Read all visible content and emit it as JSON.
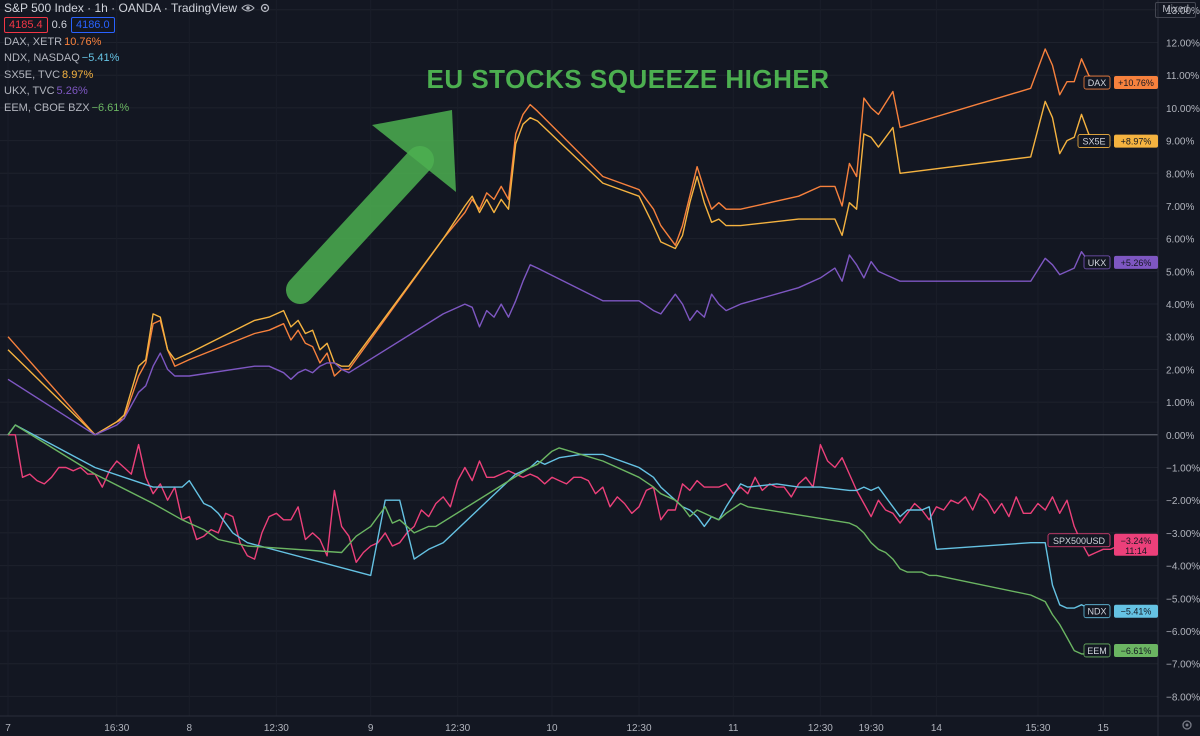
{
  "header": {
    "title": "S&P 500 Index · 1h · OANDA · TradingView",
    "bid": "4185.4",
    "spread": "0.6",
    "ask": "4186.0",
    "scale_mode": "Mixed"
  },
  "annotation": {
    "text": "EU STOCKS SQUEEZE HIGHER",
    "color": "#4caf50",
    "arrow_color": "#4caf50"
  },
  "legend": [
    {
      "name": "DAX, XETR",
      "value": "10.76%",
      "color": "#f7813d"
    },
    {
      "name": "NDX, NASDAQ",
      "value": "−5.41%",
      "color": "#65c2e3"
    },
    {
      "name": "SX5E, TVC",
      "value": "8.97%",
      "color": "#f5b340"
    },
    {
      "name": "UKX, TVC",
      "value": "5.26%",
      "color": "#7e57c2"
    },
    {
      "name": "EEM, CBOE BZX",
      "value": "−6.61%",
      "color": "#6bb562"
    }
  ],
  "chart_data": {
    "type": "line",
    "y_unit": "%",
    "ylim": [
      -8.6,
      13.3
    ],
    "y_ticks": [
      "13.00%",
      "12.00%",
      "11.00%",
      "10.00%",
      "9.00%",
      "8.00%",
      "7.00%",
      "6.00%",
      "5.00%",
      "4.00%",
      "3.00%",
      "2.00%",
      "1.00%",
      "0.00%",
      "−1.00%",
      "−2.00%",
      "−3.00%",
      "−4.00%",
      "−5.00%",
      "−6.00%",
      "−7.00%",
      "−8.00%"
    ],
    "y_tick_values": [
      13,
      12,
      11,
      10,
      9,
      8,
      7,
      6,
      5,
      4,
      3,
      2,
      1,
      0,
      -1,
      -2,
      -3,
      -4,
      -5,
      -6,
      -7,
      -8
    ],
    "x_ticks": [
      {
        "label": "7",
        "x": 0
      },
      {
        "label": "16:30",
        "x": 15
      },
      {
        "label": "8",
        "x": 25
      },
      {
        "label": "12:30",
        "x": 37
      },
      {
        "label": "9",
        "x": 50
      },
      {
        "label": "12:30",
        "x": 62
      },
      {
        "label": "10",
        "x": 75
      },
      {
        "label": "12:30",
        "x": 87
      },
      {
        "label": "11",
        "x": 100
      },
      {
        "label": "12:30",
        "x": 112
      },
      {
        "label": "19:30",
        "x": 119
      },
      {
        "label": "14",
        "x": 128
      },
      {
        "label": "15:30",
        "x": 142
      },
      {
        "label": "15",
        "x": 151
      }
    ],
    "x_range": [
      0,
      158
    ],
    "zero_line": true,
    "series": [
      {
        "name": "DAX",
        "label": "+10.76%",
        "color": "#f7813d",
        "last": 10.76,
        "x": [
          0,
          12,
          15,
          16,
          18,
          19,
          20,
          21,
          22,
          23,
          25,
          34,
          36,
          38,
          39,
          40,
          41,
          42,
          43,
          44,
          45,
          46,
          47,
          60,
          63,
          64,
          65,
          66,
          67,
          68,
          69,
          70,
          71,
          72,
          73,
          82,
          87,
          89,
          90,
          92,
          93,
          94,
          95,
          96,
          97,
          98,
          99,
          101,
          109,
          112,
          114,
          115,
          116,
          117,
          118,
          119,
          120,
          122,
          123,
          141,
          143,
          144,
          145,
          146,
          147,
          148,
          149,
          150
        ],
        "y": [
          3.0,
          0.0,
          0.4,
          0.5,
          1.8,
          2.2,
          3.4,
          3.5,
          2.6,
          2.1,
          2.3,
          3.1,
          3.2,
          3.4,
          2.9,
          3.2,
          2.8,
          2.7,
          2.2,
          2.5,
          1.8,
          2.0,
          2.0,
          6.0,
          6.8,
          7.2,
          6.9,
          7.4,
          7.2,
          7.6,
          7.2,
          9.2,
          9.8,
          10.1,
          9.9,
          7.9,
          7.5,
          6.9,
          6.4,
          5.8,
          6.4,
          7.3,
          8.2,
          7.5,
          6.9,
          7.1,
          6.9,
          6.9,
          7.3,
          7.6,
          7.6,
          7.0,
          8.3,
          7.9,
          10.3,
          10.0,
          9.8,
          10.5,
          9.4,
          10.6,
          11.8,
          11.3,
          10.4,
          10.8,
          10.8,
          11.5,
          11.0,
          10.8
        ]
      },
      {
        "name": "SX5E",
        "label": "+8.97%",
        "color": "#f5b340",
        "last": 8.97,
        "x": [
          0,
          12,
          15,
          16,
          18,
          19,
          20,
          21,
          22,
          23,
          25,
          34,
          36,
          38,
          39,
          40,
          41,
          42,
          43,
          44,
          45,
          46,
          47,
          60,
          63,
          64,
          65,
          66,
          67,
          68,
          69,
          70,
          71,
          72,
          73,
          82,
          87,
          89,
          90,
          92,
          93,
          94,
          95,
          96,
          97,
          98,
          99,
          101,
          109,
          112,
          114,
          115,
          116,
          117,
          118,
          119,
          120,
          122,
          123,
          141,
          143,
          144,
          145,
          146,
          147,
          148,
          149,
          150
        ],
        "y": [
          2.6,
          0.0,
          0.4,
          0.6,
          2.1,
          2.3,
          3.7,
          3.6,
          2.6,
          2.3,
          2.5,
          3.5,
          3.6,
          3.8,
          3.3,
          3.5,
          3.1,
          3.2,
          2.6,
          2.8,
          2.2,
          2.1,
          2.1,
          6.0,
          7.0,
          7.3,
          6.8,
          7.2,
          6.8,
          7.2,
          6.9,
          8.9,
          9.5,
          9.7,
          9.6,
          7.7,
          7.3,
          6.4,
          5.9,
          5.7,
          6.1,
          7.1,
          7.9,
          7.1,
          6.5,
          6.6,
          6.4,
          6.4,
          6.6,
          6.6,
          6.6,
          6.1,
          7.1,
          6.9,
          9.2,
          9.1,
          8.8,
          9.4,
          8.0,
          8.5,
          10.2,
          9.7,
          8.6,
          9.0,
          9.1,
          9.8,
          9.2,
          8.97
        ]
      },
      {
        "name": "UKX",
        "label": "+5.26%",
        "color": "#7e57c2",
        "last": 5.26,
        "x": [
          0,
          12,
          15,
          16,
          18,
          19,
          20,
          21,
          22,
          23,
          25,
          34,
          36,
          38,
          39,
          40,
          41,
          42,
          43,
          44,
          45,
          46,
          47,
          60,
          63,
          64,
          65,
          66,
          67,
          68,
          69,
          70,
          71,
          72,
          73,
          82,
          87,
          89,
          90,
          92,
          93,
          94,
          95,
          96,
          97,
          98,
          99,
          101,
          109,
          112,
          114,
          115,
          116,
          117,
          118,
          119,
          120,
          122,
          123,
          141,
          143,
          144,
          145,
          146,
          147,
          148,
          149,
          150
        ],
        "y": [
          1.7,
          0.0,
          0.3,
          0.5,
          1.3,
          1.5,
          2.1,
          2.5,
          2.0,
          1.8,
          1.8,
          2.1,
          2.1,
          1.9,
          1.7,
          1.9,
          2.0,
          1.9,
          2.1,
          2.2,
          2.2,
          2.0,
          1.9,
          3.7,
          4.0,
          3.9,
          3.3,
          3.8,
          3.6,
          4.0,
          3.6,
          4.1,
          4.7,
          5.2,
          5.1,
          4.1,
          4.1,
          3.8,
          3.7,
          4.3,
          4.0,
          3.5,
          3.8,
          3.6,
          4.3,
          4.0,
          3.8,
          4.0,
          4.5,
          4.8,
          5.1,
          4.7,
          5.5,
          5.2,
          4.8,
          5.3,
          5.0,
          4.8,
          4.7,
          4.7,
          5.4,
          5.2,
          4.9,
          5.0,
          5.1,
          5.6,
          5.3,
          5.26
        ]
      },
      {
        "name": "SPX500USD",
        "label": "−3.24%",
        "label2": "11:14",
        "color": "#ec407a",
        "last": -3.24,
        "x": [
          0,
          1,
          2,
          3,
          4,
          5,
          6,
          7,
          8,
          9,
          10,
          11,
          12,
          13,
          14,
          15,
          16,
          17,
          18,
          19,
          20,
          21,
          22,
          23,
          24,
          25,
          26,
          27,
          28,
          29,
          30,
          31,
          32,
          33,
          34,
          35,
          36,
          37,
          38,
          39,
          40,
          41,
          42,
          43,
          44,
          45,
          46,
          47,
          48,
          49,
          50,
          51,
          52,
          53,
          54,
          55,
          56,
          57,
          58,
          59,
          60,
          61,
          62,
          63,
          64,
          65,
          66,
          67,
          68,
          69,
          70,
          71,
          72,
          73,
          74,
          75,
          76,
          77,
          78,
          79,
          80,
          81,
          82,
          83,
          84,
          85,
          86,
          87,
          88,
          89,
          90,
          91,
          92,
          93,
          94,
          95,
          96,
          97,
          98,
          99,
          100,
          101,
          102,
          103,
          104,
          105,
          106,
          107,
          108,
          109,
          110,
          111,
          112,
          113,
          114,
          115,
          116,
          117,
          118,
          119,
          120,
          121,
          122,
          123,
          124,
          125,
          126,
          127,
          128,
          129,
          130,
          131,
          132,
          133,
          134,
          135,
          136,
          137,
          138,
          139,
          140,
          141,
          142,
          143,
          144,
          145,
          146,
          147,
          148,
          149,
          150,
          151,
          152,
          153,
          154,
          155
        ],
        "y": [
          0,
          0,
          -1.3,
          -1.2,
          -1.4,
          -1.5,
          -1.3,
          -1.0,
          -1.0,
          -1.1,
          -1.0,
          -1.2,
          -1.2,
          -1.6,
          -1.1,
          -0.8,
          -1.0,
          -1.2,
          -0.3,
          -1.3,
          -1.8,
          -1.5,
          -2.0,
          -1.6,
          -2.6,
          -2.5,
          -3.2,
          -3.1,
          -2.9,
          -3.0,
          -2.4,
          -2.5,
          -3.3,
          -3.7,
          -3.8,
          -3.0,
          -2.5,
          -2.4,
          -2.6,
          -2.6,
          -2.2,
          -3.2,
          -3.0,
          -3.2,
          -3.7,
          -1.7,
          -2.8,
          -3.1,
          -3.9,
          -3.6,
          -3.4,
          -3.3,
          -3.0,
          -3.4,
          -3.3,
          -3.0,
          -2.8,
          -2.3,
          -2.5,
          -2.1,
          -1.9,
          -2.2,
          -1.4,
          -1.0,
          -1.4,
          -0.8,
          -1.3,
          -1.3,
          -1.2,
          -1.1,
          -1.2,
          -1.3,
          -1.2,
          -1.3,
          -1.5,
          -1.3,
          -1.4,
          -1.5,
          -1.3,
          -1.3,
          -1.4,
          -1.8,
          -1.6,
          -2.2,
          -1.9,
          -2.1,
          -2.4,
          -2.2,
          -1.7,
          -1.6,
          -2.6,
          -2.3,
          -2.3,
          -1.5,
          -1.7,
          -1.4,
          -1.6,
          -1.6,
          -1.6,
          -1.5,
          -1.8,
          -1.6,
          -1.8,
          -1.3,
          -1.7,
          -1.5,
          -1.6,
          -1.6,
          -1.9,
          -1.5,
          -1.3,
          -1.6,
          -0.3,
          -0.8,
          -1.0,
          -0.7,
          -1.2,
          -1.7,
          -2.1,
          -2.5,
          -2.0,
          -2.3,
          -2.4,
          -2.7,
          -2.4,
          -2.1,
          -2.3,
          -2.6,
          -2.2,
          -2.3,
          -2.0,
          -2.1,
          -1.9,
          -2.3,
          -1.8,
          -2.0,
          -2.4,
          -2.1,
          -2.5,
          -1.9,
          -2.4,
          -2.4,
          -2.1,
          -2.3,
          -1.9,
          -2.4,
          -2.0,
          -2.8,
          -3.3,
          -3.7,
          -3.6,
          -3.5,
          -3.5,
          -3.4,
          -3.24,
          -3.24
        ]
      },
      {
        "name": "NDX",
        "label": "−5.41%",
        "color": "#65c2e3",
        "last": -5.41,
        "x": [
          0,
          1,
          12,
          20,
          24,
          25,
          27,
          28,
          29,
          31,
          33,
          50,
          52,
          53,
          54,
          56,
          58,
          60,
          70,
          72,
          73,
          74,
          75,
          76,
          79,
          82,
          87,
          89,
          90,
          92,
          93,
          94,
          95,
          96,
          97,
          98,
          99,
          101,
          102,
          106,
          109,
          112,
          116,
          117,
          118,
          119,
          120,
          121,
          122,
          123,
          124,
          125,
          126,
          127,
          128,
          141,
          143,
          144,
          145,
          146,
          147,
          148,
          149,
          150
        ],
        "y": [
          0,
          0.3,
          -1.0,
          -1.6,
          -1.6,
          -1.4,
          -2.1,
          -2.2,
          -2.4,
          -3.0,
          -3.3,
          -4.3,
          -2.0,
          -2.0,
          -2.0,
          -3.8,
          -3.5,
          -3.3,
          -1.2,
          -1.0,
          -0.8,
          -0.9,
          -0.8,
          -0.7,
          -0.6,
          -0.6,
          -1.0,
          -1.3,
          -1.6,
          -2.0,
          -2.2,
          -2.3,
          -2.5,
          -2.8,
          -2.5,
          -2.6,
          -2.2,
          -1.5,
          -1.6,
          -1.5,
          -1.6,
          -1.6,
          -1.7,
          -1.7,
          -1.6,
          -1.7,
          -1.6,
          -1.9,
          -2.2,
          -2.5,
          -2.3,
          -2.3,
          -2.3,
          -2.2,
          -3.5,
          -3.3,
          -3.3,
          -4.6,
          -5.2,
          -5.3,
          -5.3,
          -5.2,
          -5.3,
          -5.41
        ]
      },
      {
        "name": "EEM",
        "label": "−6.61%",
        "color": "#6bb562",
        "last": -6.61,
        "x": [
          0,
          1,
          12,
          20,
          24,
          25,
          27,
          29,
          31,
          33,
          46,
          48,
          50,
          51,
          52,
          53,
          54,
          56,
          58,
          59,
          72,
          73,
          74,
          75,
          76,
          79,
          82,
          87,
          89,
          90,
          92,
          93,
          94,
          95,
          96,
          97,
          98,
          99,
          101,
          102,
          116,
          117,
          118,
          119,
          120,
          121,
          122,
          123,
          124,
          125,
          126,
          127,
          128,
          141,
          143,
          144,
          145,
          146,
          147,
          148,
          149,
          150
        ],
        "y": [
          0,
          0.3,
          -1.2,
          -2.1,
          -2.6,
          -2.7,
          -2.9,
          -3.2,
          -3.3,
          -3.4,
          -3.6,
          -3.1,
          -2.8,
          -2.5,
          -2.2,
          -2.7,
          -2.6,
          -3.0,
          -2.8,
          -2.8,
          -1.0,
          -0.9,
          -0.7,
          -0.5,
          -0.4,
          -0.6,
          -0.8,
          -1.3,
          -1.6,
          -1.8,
          -2.0,
          -2.2,
          -2.5,
          -2.3,
          -2.4,
          -2.5,
          -2.6,
          -2.4,
          -2.1,
          -2.2,
          -2.7,
          -2.8,
          -3.0,
          -3.3,
          -3.5,
          -3.6,
          -3.8,
          -4.1,
          -4.2,
          -4.2,
          -4.2,
          -4.3,
          -4.3,
          -4.9,
          -5.1,
          -5.5,
          -5.8,
          -6.2,
          -6.6,
          -6.7,
          -6.7,
          -6.61
        ]
      }
    ]
  }
}
